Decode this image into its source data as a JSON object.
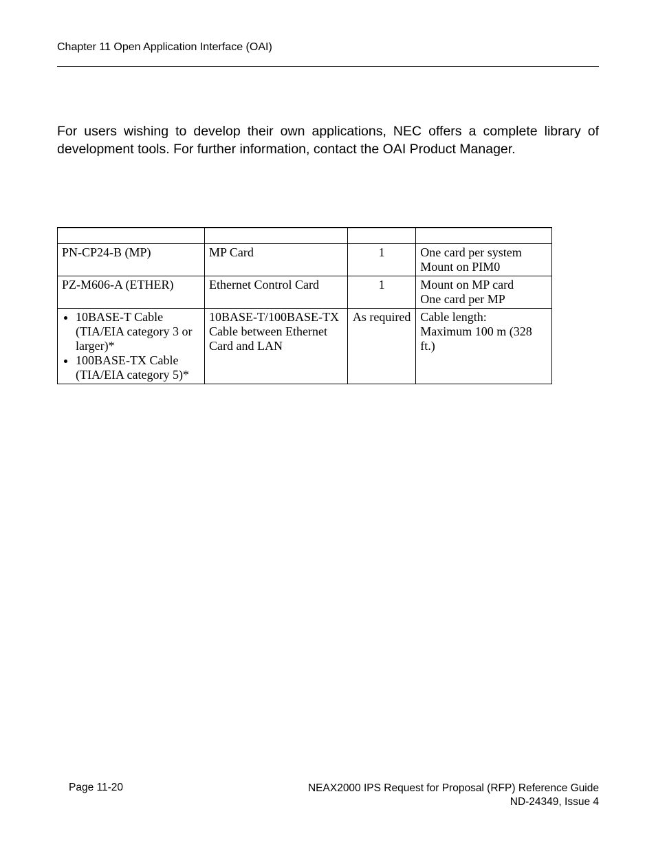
{
  "header": {
    "chapter": "Chapter 11   Open Application Interface (OAI)"
  },
  "body": {
    "intro": "For users wishing to develop their own applications, NEC offers a complete library of development tools. For further information, contact the OAI Product Manager."
  },
  "table": {
    "columns": [
      "",
      "",
      "",
      ""
    ],
    "rows": [
      {
        "equipment_html": "PN-CP24-B (MP)",
        "description": "MP Card",
        "qty": "1",
        "remarks_html": "One card per system<br>Mount on PIM0"
      },
      {
        "equipment_html": "PZ-M606-A (ETHER)",
        "description": "Ethernet Control Card",
        "qty": "1",
        "remarks_html": "Mount on MP card<br>One card per MP"
      },
      {
        "equipment_html": "<ul class=\"cable-list\"><li>10BASE-T Cable (TIA/EIA category 3 or larger)*</li><li>100BASE-TX Cable (TIA/EIA category 5)*</li></ul>",
        "description": "10BASE-T/100BASE-TX Cable between Ethernet Card and LAN",
        "qty": "As required",
        "remarks_html": "Cable length:<br>Maximum 100 m (328 ft.)"
      }
    ]
  },
  "footer": {
    "page": "Page 11-20",
    "doc_title": "NEAX2000 IPS Request for Proposal (RFP) Reference Guide",
    "doc_issue": "ND-24349, Issue 4"
  }
}
